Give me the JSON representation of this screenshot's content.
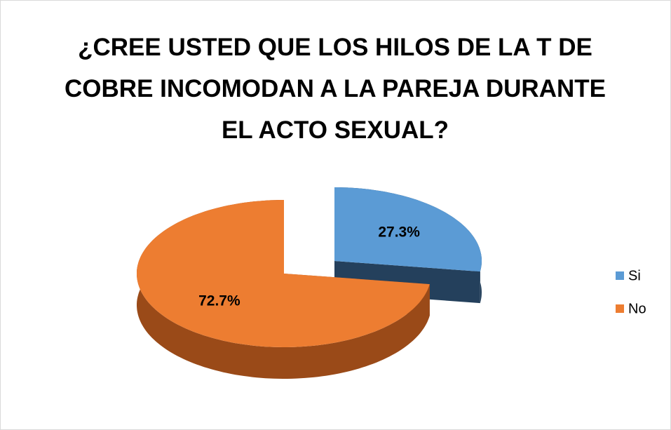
{
  "chart_data": {
    "type": "pie3d",
    "title": "¿CREE USTED QUE LOS HILOS DE LA T DE COBRE INCOMODAN A LA PAREJA DURANTE EL ACTO SEXUAL?",
    "categories": [
      "Si",
      "No"
    ],
    "values": [
      27.3,
      72.7
    ],
    "value_labels": [
      "27.3%",
      "72.7%"
    ],
    "colors": [
      "#5b9bd5",
      "#ed7d31"
    ],
    "side_colors": [
      "#24405c",
      "#9a4a18"
    ],
    "legend": "right"
  }
}
